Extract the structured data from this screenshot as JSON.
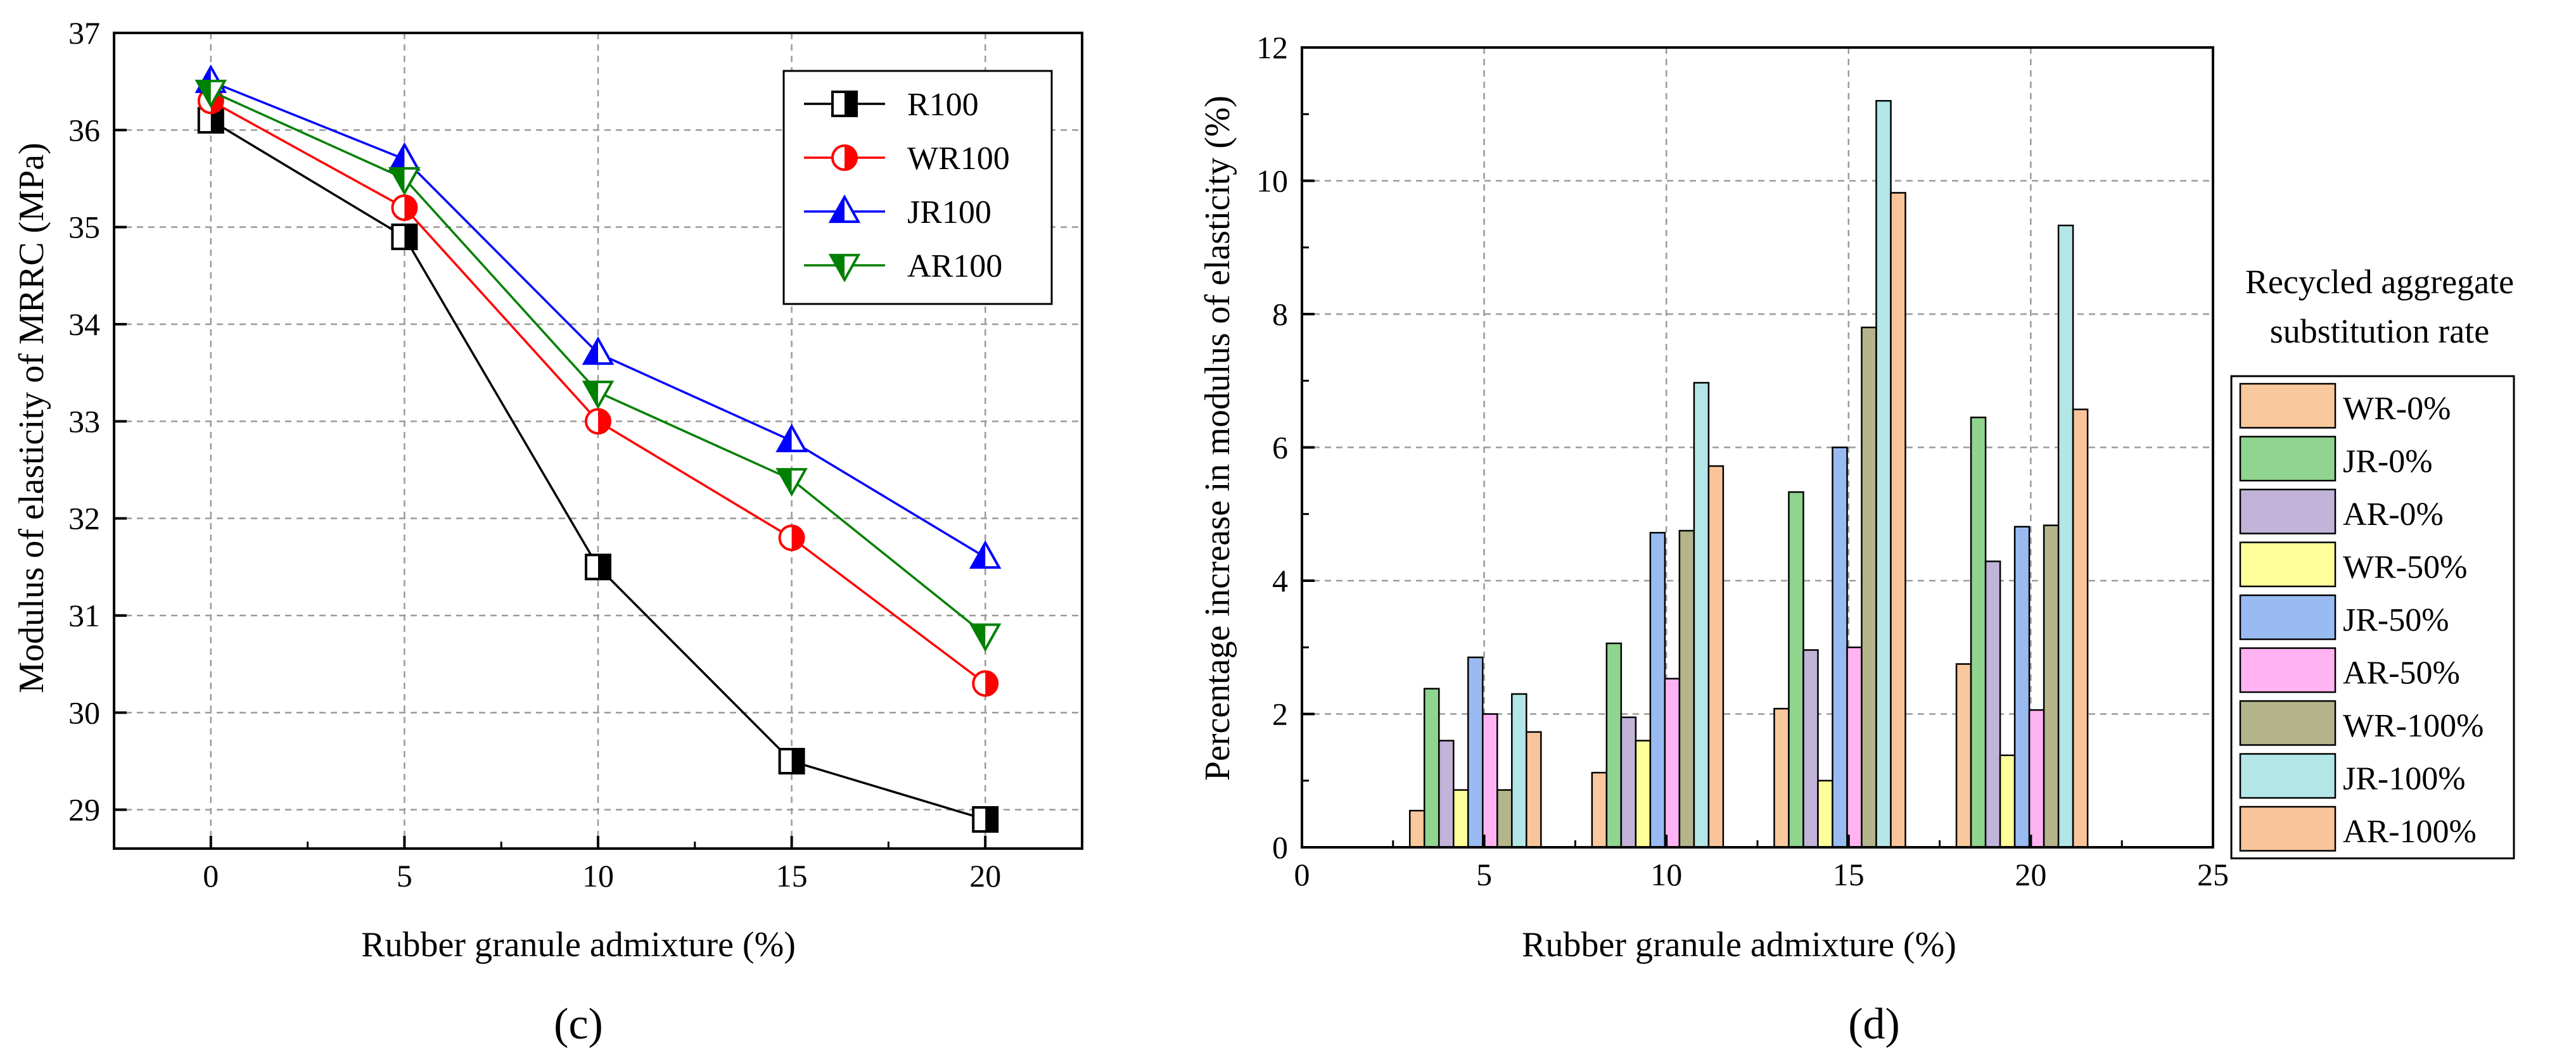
{
  "chart_data": [
    {
      "panel": "c",
      "type": "line",
      "ylabel": "Modulus of elasticity of MRRC (MPa)",
      "xlabel": "Rubber granule admixture (%)",
      "xlim": [
        -2.5,
        22.5
      ],
      "ylim": [
        28.6,
        37
      ],
      "x": [
        0,
        5,
        10,
        15,
        20
      ],
      "xticks": [
        0,
        5,
        10,
        15,
        20
      ],
      "yticks": [
        29,
        30,
        31,
        32,
        33,
        34,
        35,
        36,
        37
      ],
      "grid": true,
      "legend_position": "top-right",
      "series": [
        {
          "name": "R100",
          "values": [
            36.1,
            34.9,
            31.5,
            29.5,
            28.9
          ],
          "color": "#000000",
          "marker": "half-square"
        },
        {
          "name": "WR100",
          "values": [
            36.3,
            35.2,
            33.0,
            31.8,
            30.3
          ],
          "color": "#ff0000",
          "marker": "half-circle"
        },
        {
          "name": "JR100",
          "values": [
            36.5,
            35.7,
            33.7,
            32.8,
            31.6
          ],
          "color": "#0000ff",
          "marker": "half-triangle-up"
        },
        {
          "name": "AR100",
          "values": [
            36.4,
            35.5,
            33.3,
            32.4,
            30.8
          ],
          "color": "#008000",
          "marker": "half-triangle-down"
        }
      ]
    },
    {
      "panel": "d",
      "type": "bar",
      "ylabel": "Percentage increase in modulus of elasticity (%)",
      "xlabel": "Rubber granule admixture (%)",
      "xlim": [
        0,
        25
      ],
      "ylim": [
        0,
        12
      ],
      "categories": [
        5,
        10,
        15,
        20
      ],
      "xticks": [
        0,
        5,
        10,
        15,
        20,
        25
      ],
      "yticks": [
        0,
        2,
        4,
        6,
        8,
        10,
        12
      ],
      "grid": true,
      "legend_title": "Recycled aggregate substitution rate",
      "legend_title_lines": [
        "Recycled aggregate",
        "substitution rate"
      ],
      "legend_position": "right",
      "series": [
        {
          "name": "WR-0%",
          "values": [
            0.55,
            1.12,
            2.08,
            2.75
          ],
          "color": "#f9c89c"
        },
        {
          "name": "JR-0%",
          "values": [
            2.38,
            3.06,
            5.33,
            6.45
          ],
          "color": "#8fd48f"
        },
        {
          "name": "AR-0%",
          "values": [
            1.6,
            1.95,
            2.96,
            4.29
          ],
          "color": "#c2b3d9"
        },
        {
          "name": "WR-50%",
          "values": [
            0.86,
            1.6,
            1.0,
            1.38
          ],
          "color": "#ffff99"
        },
        {
          "name": "JR-50%",
          "values": [
            2.85,
            4.72,
            6.0,
            4.81
          ],
          "color": "#99bbf2"
        },
        {
          "name": "AR-50%",
          "values": [
            2.0,
            2.53,
            3.0,
            2.06
          ],
          "color": "#ffb3f2"
        },
        {
          "name": "WR-100%",
          "values": [
            0.86,
            4.75,
            7.8,
            4.83
          ],
          "color": "#b5b58c"
        },
        {
          "name": "JR-100%",
          "values": [
            2.3,
            6.97,
            11.2,
            9.33
          ],
          "color": "#b3e6e6"
        },
        {
          "name": "AR-100%",
          "values": [
            1.73,
            5.72,
            9.82,
            6.57
          ],
          "color": "#f9c49a"
        }
      ]
    }
  ],
  "panel_labels": {
    "c": "(c)",
    "d": "(d)"
  }
}
